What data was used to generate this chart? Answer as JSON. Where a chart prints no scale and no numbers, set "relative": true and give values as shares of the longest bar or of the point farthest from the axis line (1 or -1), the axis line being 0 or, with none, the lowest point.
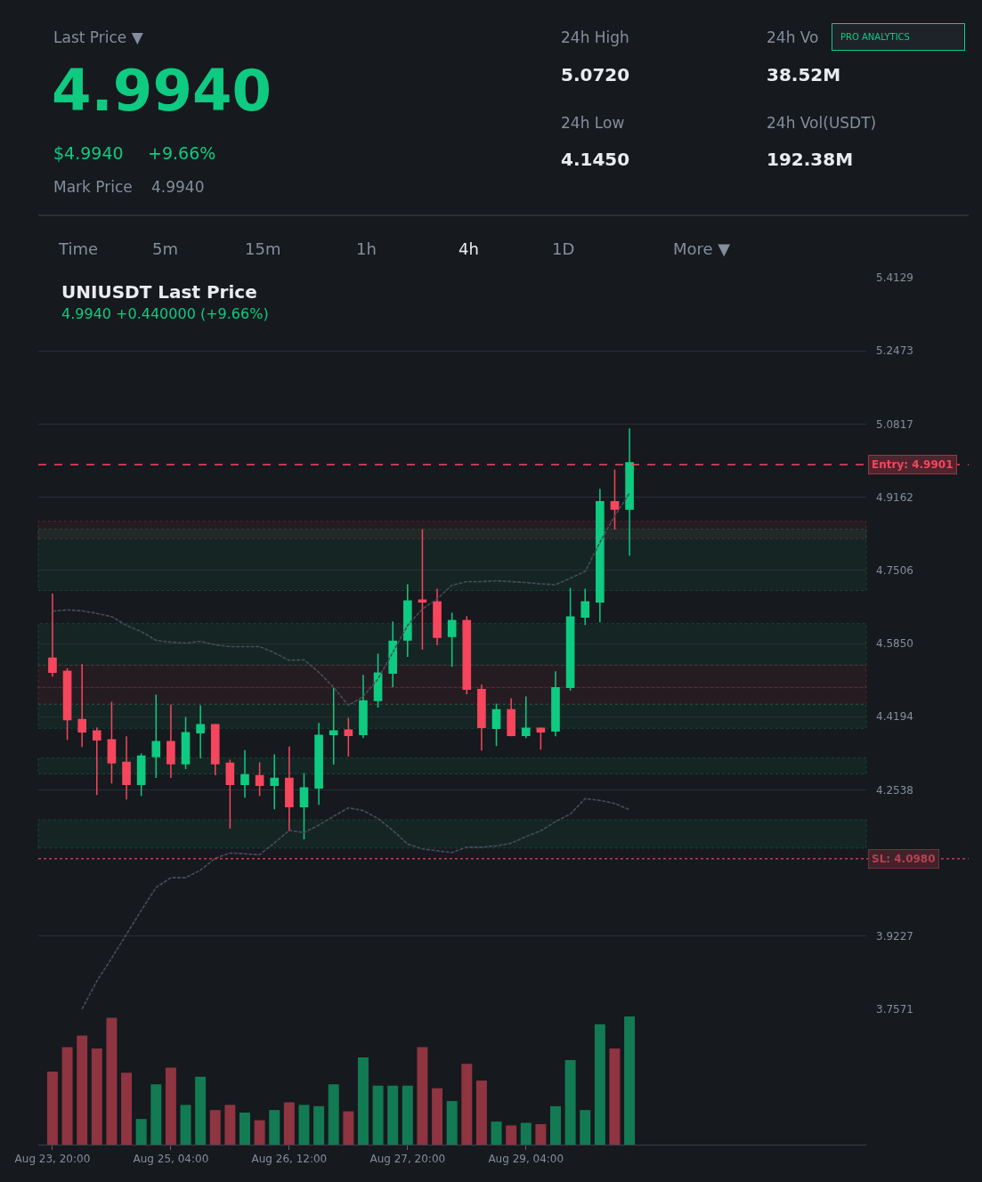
{
  "chart_data": [
    {
      "type": "other",
      "annotations": [
        "Last Price ▼",
        "4.9940",
        "$4.9940",
        "+9.66%",
        "Mark Price",
        "4.9940",
        "24h High",
        "5.0720",
        "24h Low",
        "4.1450",
        "24h Vo",
        "38.52M",
        "24h Vol(USDT)",
        "192.38M",
        "PRO ANALYTICS"
      ],
      "colors": [
        "#848e9c",
        "#0ecb81",
        "#0ecb81",
        "#0ecb81",
        "#848e9c",
        "#848e9c",
        "#848e9c",
        "#eaecef",
        "#848e9c",
        "#eaecef",
        "#848e9c",
        "#eaecef",
        "#848e9c",
        "#eaecef",
        "#0ecb81"
      ]
    },
    {
      "type": "other",
      "categories": [
        "Time",
        "5m",
        "15m",
        "1h",
        "4h",
        "1D",
        "More ▼"
      ],
      "colors": [
        "#848e9c",
        "#848e9c",
        "#848e9c",
        "#848e9c",
        "#eaecef",
        "#848e9c",
        "#848e9c"
      ]
    },
    {
      "type": "candlestick",
      "title": "UNIUSDT Last Price",
      "subtitle": "4.9940 +0.440000 (+9.66%)",
      "categories": [
        null,
        null,
        null,
        null,
        null,
        null,
        null,
        null,
        null,
        null,
        null,
        null,
        null,
        null,
        null,
        null,
        null,
        null,
        null,
        null,
        null,
        null,
        null,
        null,
        null,
        null,
        null,
        null,
        null,
        null,
        null,
        null,
        null,
        null,
        null,
        null,
        null,
        null,
        null,
        null
      ],
      "ohlc": [
        [
          4.552,
          4.698,
          4.51,
          4.52
        ],
        [
          4.522,
          4.529,
          4.367,
          4.413
        ],
        [
          4.413,
          4.538,
          4.351,
          4.385
        ],
        [
          4.387,
          4.395,
          4.242,
          4.367
        ],
        [
          4.367,
          4.453,
          4.268,
          4.315
        ],
        [
          4.316,
          4.375,
          4.232,
          4.266
        ],
        [
          4.266,
          4.336,
          4.24,
          4.33
        ],
        [
          4.329,
          4.469,
          4.281,
          4.363
        ],
        [
          4.363,
          4.447,
          4.281,
          4.313
        ],
        [
          4.313,
          4.419,
          4.301,
          4.383
        ],
        [
          4.383,
          4.445,
          4.325,
          4.401
        ],
        [
          4.401,
          4.403,
          4.287,
          4.313
        ],
        [
          4.314,
          4.322,
          4.166,
          4.266
        ],
        [
          4.266,
          4.344,
          4.236,
          4.288
        ],
        [
          4.286,
          4.316,
          4.24,
          4.264
        ],
        [
          4.264,
          4.334,
          4.21,
          4.28
        ],
        [
          4.28,
          4.352,
          4.16,
          4.216
        ],
        [
          4.216,
          4.292,
          4.142,
          4.258
        ],
        [
          4.258,
          4.405,
          4.22,
          4.377
        ],
        [
          4.379,
          4.485,
          4.311,
          4.387
        ],
        [
          4.389,
          4.417,
          4.329,
          4.377
        ],
        [
          4.379,
          4.514,
          4.371,
          4.455
        ],
        [
          4.456,
          4.562,
          4.44,
          4.518
        ],
        [
          4.518,
          4.635,
          4.486,
          4.59
        ],
        [
          4.593,
          4.719,
          4.555,
          4.681
        ],
        [
          4.683,
          4.844,
          4.571,
          4.679
        ],
        [
          4.679,
          4.709,
          4.581,
          4.599
        ],
        [
          4.601,
          4.655,
          4.532,
          4.637
        ],
        [
          4.637,
          4.647,
          4.47,
          4.482
        ],
        [
          4.481,
          4.492,
          4.343,
          4.395
        ],
        [
          4.393,
          4.449,
          4.353,
          4.435
        ],
        [
          4.435,
          4.461,
          4.375,
          4.377
        ],
        [
          4.377,
          4.465,
          4.371,
          4.393
        ],
        [
          4.393,
          4.395,
          4.345,
          4.385
        ],
        [
          4.387,
          4.522,
          4.375,
          4.485
        ],
        [
          4.486,
          4.711,
          4.478,
          4.645
        ],
        [
          4.645,
          4.709,
          4.627,
          4.679
        ],
        [
          4.679,
          4.935,
          4.633,
          4.906
        ],
        [
          4.906,
          4.979,
          4.843,
          4.889
        ],
        [
          4.889,
          5.072,
          4.784,
          4.994
        ]
      ],
      "colors": [
        "#f6465d",
        "#f6465d",
        "#f6465d",
        "#f6465d",
        "#f6465d",
        "#f6465d",
        "#0ecb81",
        "#0ecb81",
        "#f6465d",
        "#0ecb81",
        "#0ecb81",
        "#f6465d",
        "#f6465d",
        "#0ecb81",
        "#f6465d",
        "#0ecb81",
        "#f6465d",
        "#0ecb81",
        "#0ecb81",
        "#0ecb81",
        "#f6465d",
        "#0ecb81",
        "#0ecb81",
        "#0ecb81",
        "#0ecb81",
        "#f6465d",
        "#f6465d",
        "#0ecb81",
        "#f6465d",
        "#f6465d",
        "#0ecb81",
        "#f6465d",
        "#0ecb81",
        "#f6465d",
        "#0ecb81",
        "#0ecb81",
        "#0ecb81",
        "#0ecb81",
        "#f6465d",
        "#0ecb81"
      ],
      "series": [
        {
          "type": "line",
          "color": "#474d57",
          "values": [
            4.658,
            4.661,
            4.659,
            4.653,
            4.646,
            4.626,
            4.612,
            4.592,
            4.588,
            4.586,
            4.59,
            4.582,
            4.578,
            4.578,
            4.578,
            4.564,
            4.547,
            4.548,
            4.52,
            4.486,
            4.445,
            4.465,
            4.505,
            4.565,
            4.626,
            4.663,
            4.686,
            4.717,
            4.725,
            4.725,
            4.727,
            4.725,
            4.723,
            4.72,
            4.718,
            4.733,
            4.748,
            4.814,
            4.874,
            4.925
          ]
        },
        {
          "type": "line",
          "color": "#474d57",
          "values": [
            null,
            null,
            3.758,
            3.821,
            3.873,
            3.927,
            3.981,
            4.033,
            4.055,
            4.055,
            4.072,
            4.099,
            4.111,
            4.109,
            4.107,
            4.134,
            4.162,
            4.157,
            4.174,
            4.194,
            4.213,
            4.207,
            4.189,
            4.162,
            4.131,
            4.12,
            4.116,
            4.112,
            4.124,
            4.124,
            4.127,
            4.133,
            4.148,
            4.161,
            4.182,
            4.199,
            4.234,
            4.23,
            4.223,
            4.209
          ]
        }
      ],
      "line_style": "dashed",
      "ylim": [
        3.7571,
        5.4129
      ],
      "yticks": [
        5.4129,
        5.2473,
        5.0817,
        4.9162,
        4.7506,
        {
          "value": 4.585,
          "label": "4.5850"
        },
        4.4194,
        4.2538,
        3.9227,
        3.7571
      ],
      "grid": "y",
      "tick_labels": "y",
      "ref_lines": [
        {
          "axis": "y",
          "value": 4.9901,
          "label": "Entry: 4.9901",
          "color": "#f6465d",
          "line_style": "dashed"
        },
        {
          "axis": "y",
          "value": 4.098,
          "label": "SL: 4.0980",
          "color": "#b8404f",
          "line_style": "dotted"
        }
      ],
      "bands": [
        {
          "axis": "y",
          "from": 4.822,
          "to": 4.862,
          "color": "#f6465d"
        },
        {
          "axis": "y",
          "from": 4.448,
          "to": 4.486,
          "color": "#f6465d"
        },
        {
          "axis": "y",
          "from": 4.122,
          "to": 4.186,
          "color": "#0ecb81"
        },
        {
          "axis": "y",
          "from": 4.705,
          "to": 4.844,
          "color": "#0ecb81"
        },
        {
          "axis": "y",
          "from": 4.536,
          "to": 4.63,
          "color": "#0ecb81"
        },
        {
          "axis": "y",
          "from": 4.485,
          "to": 4.536,
          "color": "#f6465d"
        },
        {
          "axis": "y",
          "from": 4.393,
          "to": 4.447,
          "color": "#0ecb81"
        },
        {
          "axis": "y",
          "from": 4.29,
          "to": 4.326,
          "color": "#0ecb81"
        }
      ]
    },
    {
      "type": "bar",
      "relative": true,
      "tick_labels": "x",
      "categories": [
        "Aug 23, 20:00",
        null,
        null,
        null,
        null,
        null,
        null,
        null,
        "Aug 25, 04:00",
        null,
        null,
        null,
        null,
        null,
        null,
        null,
        "Aug 26, 12:00",
        null,
        null,
        null,
        null,
        null,
        null,
        null,
        "Aug 27, 20:00",
        null,
        null,
        null,
        null,
        null,
        null,
        null,
        "Aug 29, 04:00",
        null,
        null,
        null,
        null,
        null,
        null,
        null
      ],
      "values": [
        0.57,
        0.76,
        0.85,
        0.75,
        0.99,
        0.56,
        0.2,
        0.47,
        0.6,
        0.31,
        0.53,
        0.27,
        0.31,
        0.25,
        0.19,
        0.27,
        0.33,
        0.31,
        0.3,
        0.47,
        0.26,
        0.68,
        0.46,
        0.46,
        0.46,
        0.76,
        0.44,
        0.34,
        0.63,
        0.5,
        0.18,
        0.15,
        0.17,
        0.16,
        0.3,
        0.66,
        0.27,
        0.94,
        0.75,
        1
      ],
      "colors": [
        "#8f3441",
        "#8f3441",
        "#8f3441",
        "#8f3441",
        "#8f3441",
        "#8f3441",
        "#127b53",
        "#127b53",
        "#8f3441",
        "#127b53",
        "#127b53",
        "#8f3441",
        "#8f3441",
        "#127b53",
        "#8f3441",
        "#127b53",
        "#8f3441",
        "#127b53",
        "#127b53",
        "#127b53",
        "#8f3441",
        "#127b53",
        "#127b53",
        "#127b53",
        "#127b53",
        "#8f3441",
        "#8f3441",
        "#127b53",
        "#8f3441",
        "#8f3441",
        "#127b53",
        "#8f3441",
        "#127b53",
        "#8f3441",
        "#127b53",
        "#127b53",
        "#127b53",
        "#127b53",
        "#8f3441",
        "#127b53"
      ]
    }
  ]
}
